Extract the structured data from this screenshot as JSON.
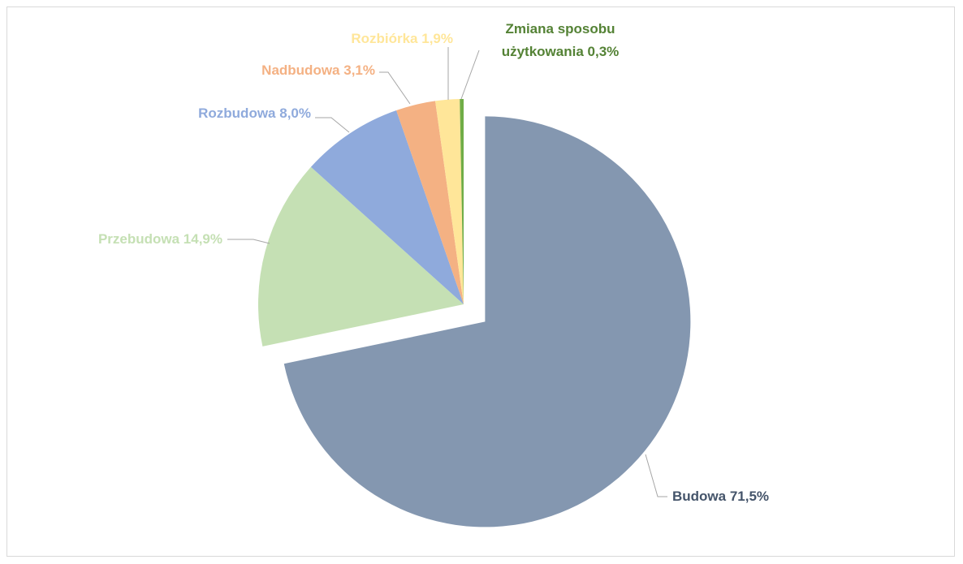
{
  "chart_data": {
    "type": "pie",
    "categories": [
      "Budowa",
      "Przebudowa",
      "Rozbudowa",
      "Nadbudowa",
      "Rozbiórka",
      "Zmiana sposobu użytkowania"
    ],
    "values": [
      71.5,
      14.9,
      8.0,
      3.1,
      1.9,
      0.3
    ],
    "value_labels": [
      "71,5%",
      "14,9%",
      "8,0%",
      "3,1%",
      "1,9%",
      "0,3%"
    ],
    "colors": [
      "#8497b0",
      "#c5e0b4",
      "#8faadc",
      "#f4b183",
      "#ffe699",
      "#70ad47"
    ],
    "label_colors": [
      "#44546a",
      "#c5e0b4",
      "#8faadc",
      "#f4b183",
      "#ffe699",
      "#548235"
    ],
    "explode": [
      true,
      false,
      false,
      false,
      false,
      false
    ]
  }
}
